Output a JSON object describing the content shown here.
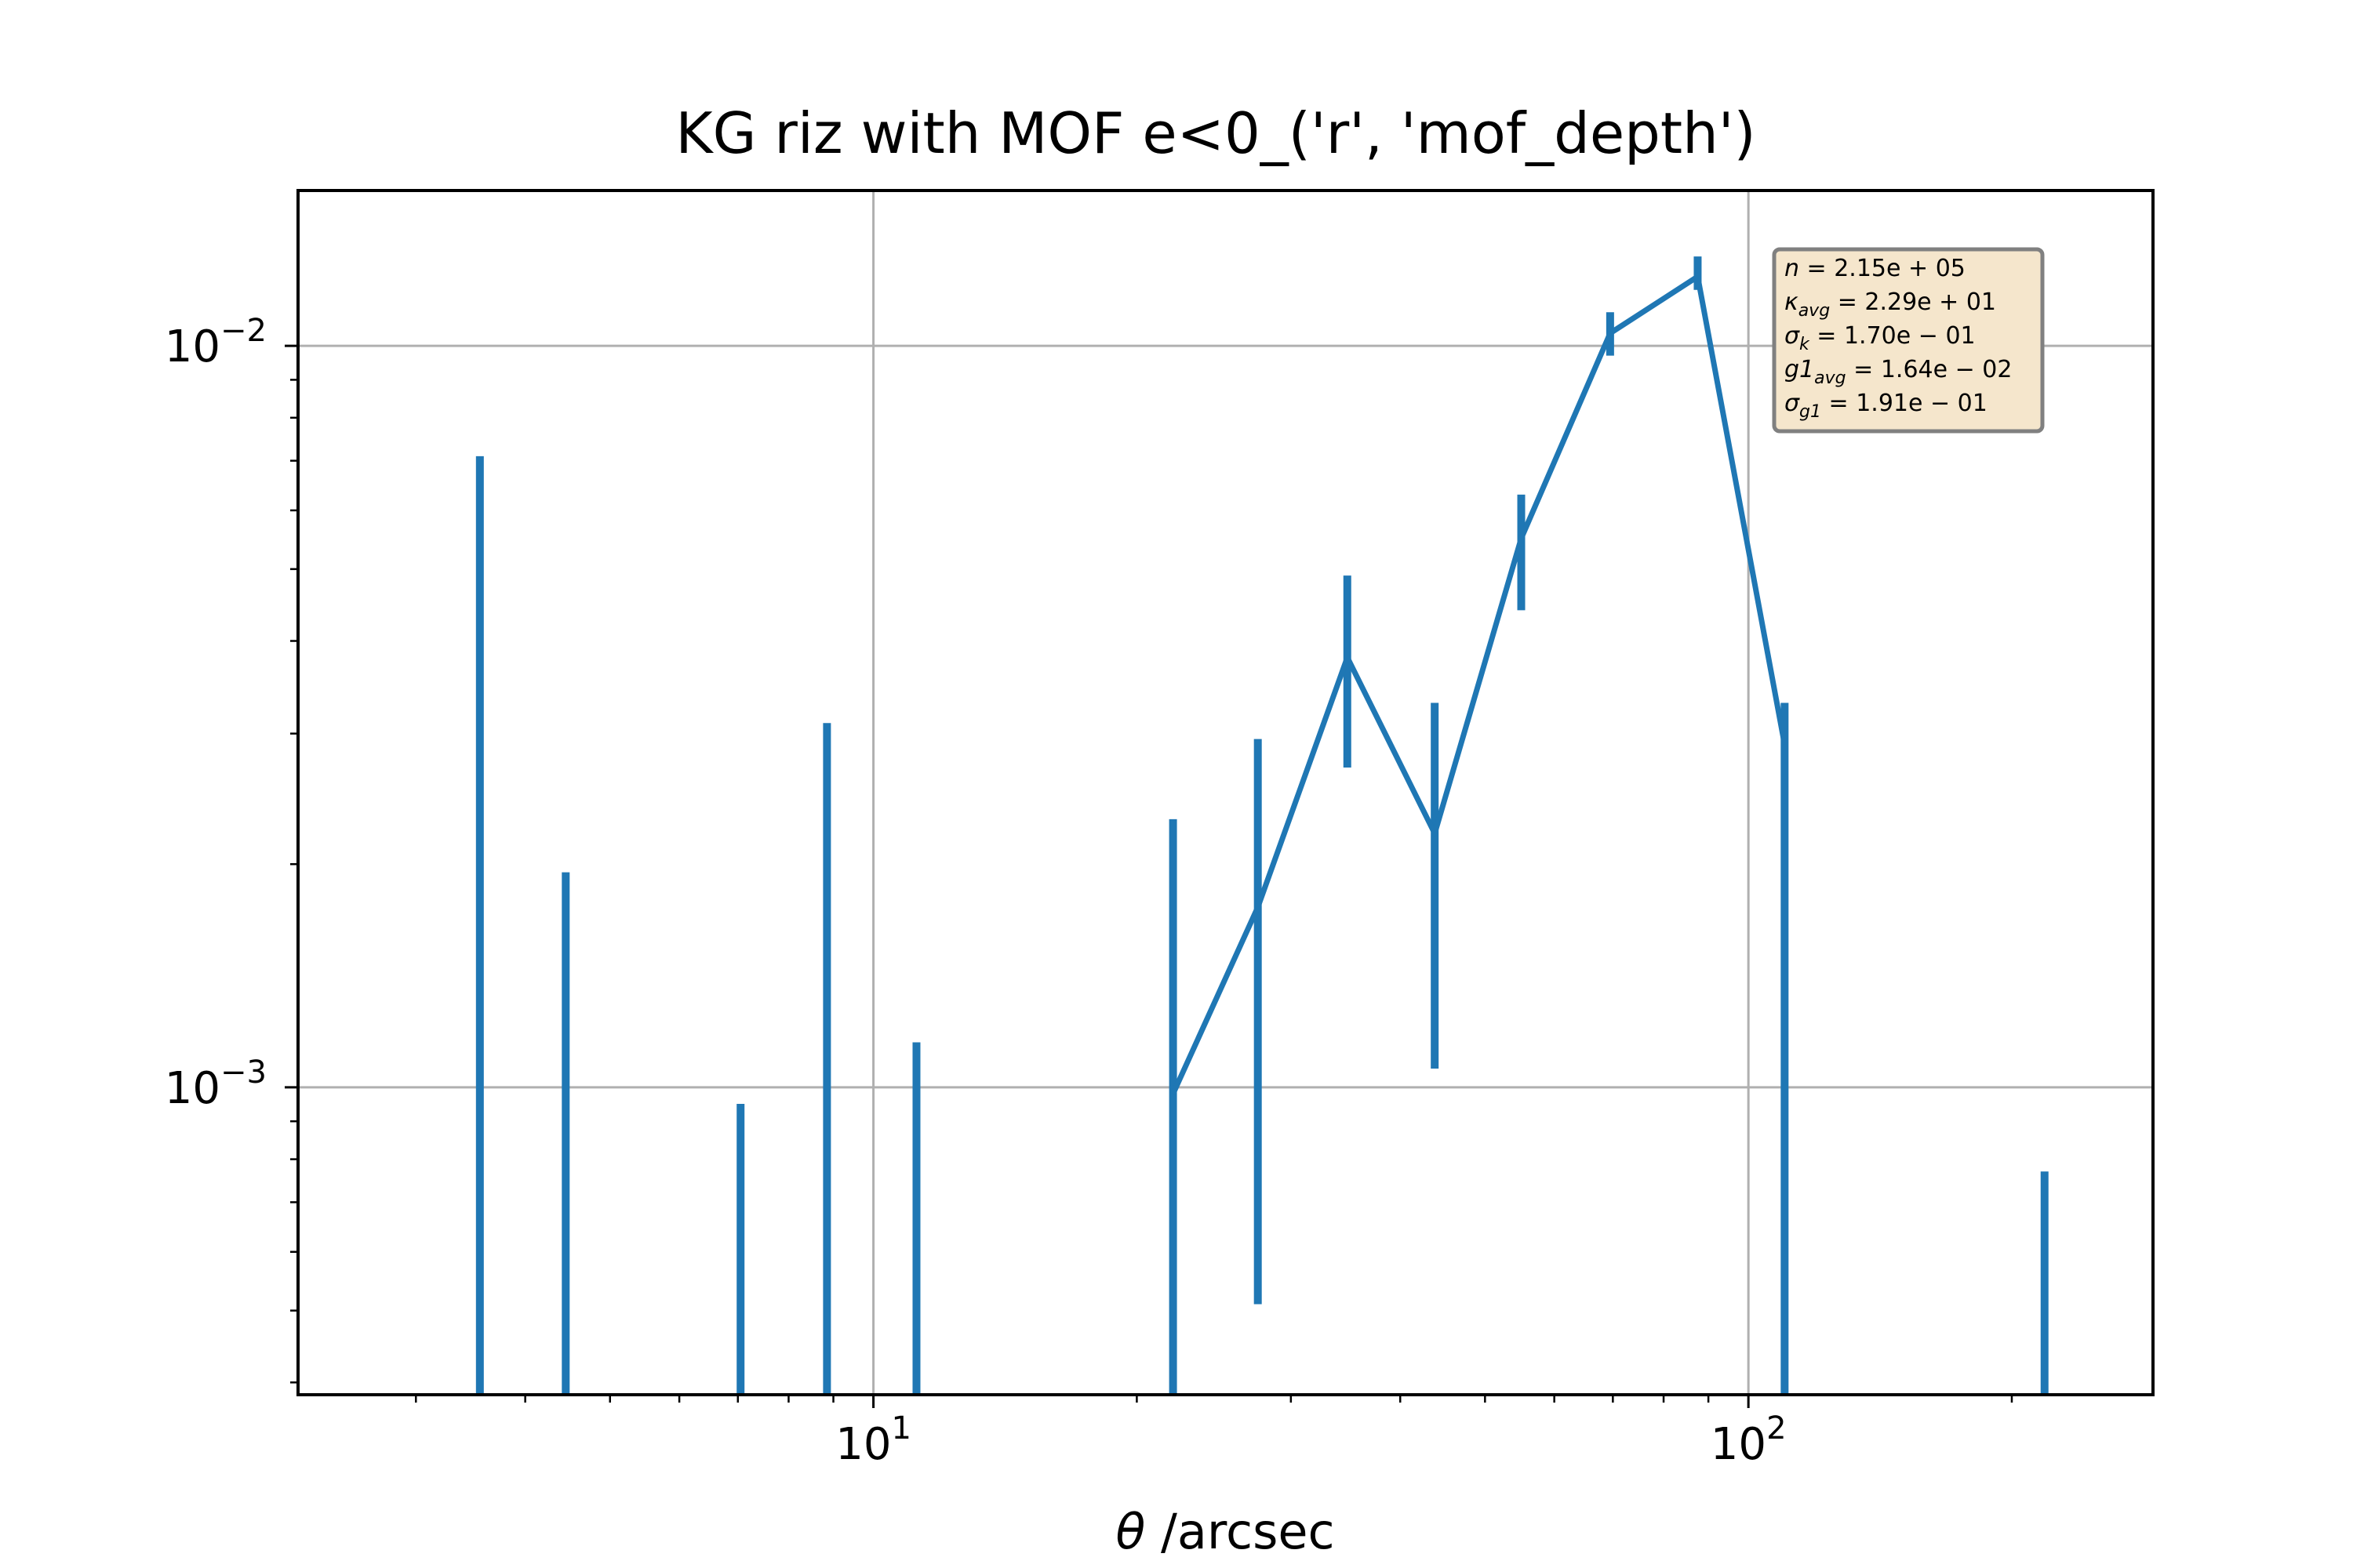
{
  "chart_data": {
    "type": "line",
    "title": "KG riz with MOF e<0_('r', 'mof_depth')",
    "xlabel": "θ /arcsec",
    "xlabel_symbol": "θ",
    "xlabel_unit": " /arcsec",
    "ylabel": "",
    "xscale": "log",
    "yscale": "log",
    "xlim": [
      2.2,
      290
    ],
    "ylim": [
      0.000385,
      0.0162
    ],
    "grid": true,
    "x_ticks": [
      {
        "value": 10,
        "base": "10",
        "exp": "1"
      },
      {
        "value": 100,
        "base": "10",
        "exp": "2"
      }
    ],
    "y_ticks": [
      {
        "value": 0.01,
        "base": "10",
        "exp": "−2"
      },
      {
        "value": 0.001,
        "base": "10",
        "exp": "−3"
      }
    ],
    "series": [
      {
        "color": "#1f77b4",
        "line": [
          [
            22.0,
            0.00098
          ],
          [
            27.5,
            0.00175
          ],
          [
            34.8,
            0.0038
          ],
          [
            43.8,
            0.0022
          ],
          [
            55.0,
            0.0055
          ],
          [
            69.5,
            0.0104
          ],
          [
            87.5,
            0.0124
          ],
          [
            110.0,
            0.0029
          ]
        ],
        "points": [
          {
            "x": 3.55,
            "y": 0.00092,
            "lo": 0.000385,
            "hi": 0.0071
          },
          {
            "x": 4.45,
            "y": 0.00097,
            "lo": 0.000385,
            "hi": 0.00195
          },
          {
            "x": 7.05,
            "y": 0.00062,
            "lo": 0.000385,
            "hi": 0.00095
          },
          {
            "x": 8.85,
            "y": 0.00046,
            "lo": 0.000385,
            "hi": 0.0031
          },
          {
            "x": 11.2,
            "y": 0.00066,
            "lo": 0.000385,
            "hi": 0.00115
          },
          {
            "x": 22.0,
            "y": 0.00098,
            "lo": 0.000385,
            "hi": 0.0023
          },
          {
            "x": 27.5,
            "y": 0.00175,
            "lo": 0.00051,
            "hi": 0.00295
          },
          {
            "x": 34.8,
            "y": 0.0038,
            "lo": 0.0027,
            "hi": 0.0049
          },
          {
            "x": 43.8,
            "y": 0.0022,
            "lo": 0.00106,
            "hi": 0.0033
          },
          {
            "x": 55.0,
            "y": 0.0055,
            "lo": 0.0044,
            "hi": 0.0063
          },
          {
            "x": 69.5,
            "y": 0.0104,
            "lo": 0.0097,
            "hi": 0.0111
          },
          {
            "x": 87.5,
            "y": 0.0124,
            "lo": 0.0119,
            "hi": 0.0132
          },
          {
            "x": 110.0,
            "y": 0.0029,
            "lo": 0.000385,
            "hi": 0.0033
          },
          {
            "x": 218.0,
            "y": 0.00049,
            "lo": 0.000385,
            "hi": 0.00077
          }
        ]
      }
    ],
    "stats_box": [
      {
        "sym": "n",
        "sub": "",
        "val": " = 2.15e + 05"
      },
      {
        "sym": "κ",
        "sub": "avg",
        "val": " = 2.29e + 01"
      },
      {
        "sym": "σ",
        "sub": "k",
        "val": " = 1.70e − 01"
      },
      {
        "sym": "g1",
        "sub": "avg",
        "val": " = 1.64e − 02"
      },
      {
        "sym": "σ",
        "sub": "g1",
        "val": " = 1.91e − 01"
      }
    ],
    "colors": {
      "series": "#1f77b4",
      "grid": "#b0b0b0",
      "box_fill": "#f5e6cc",
      "box_edge": "#808080"
    }
  }
}
